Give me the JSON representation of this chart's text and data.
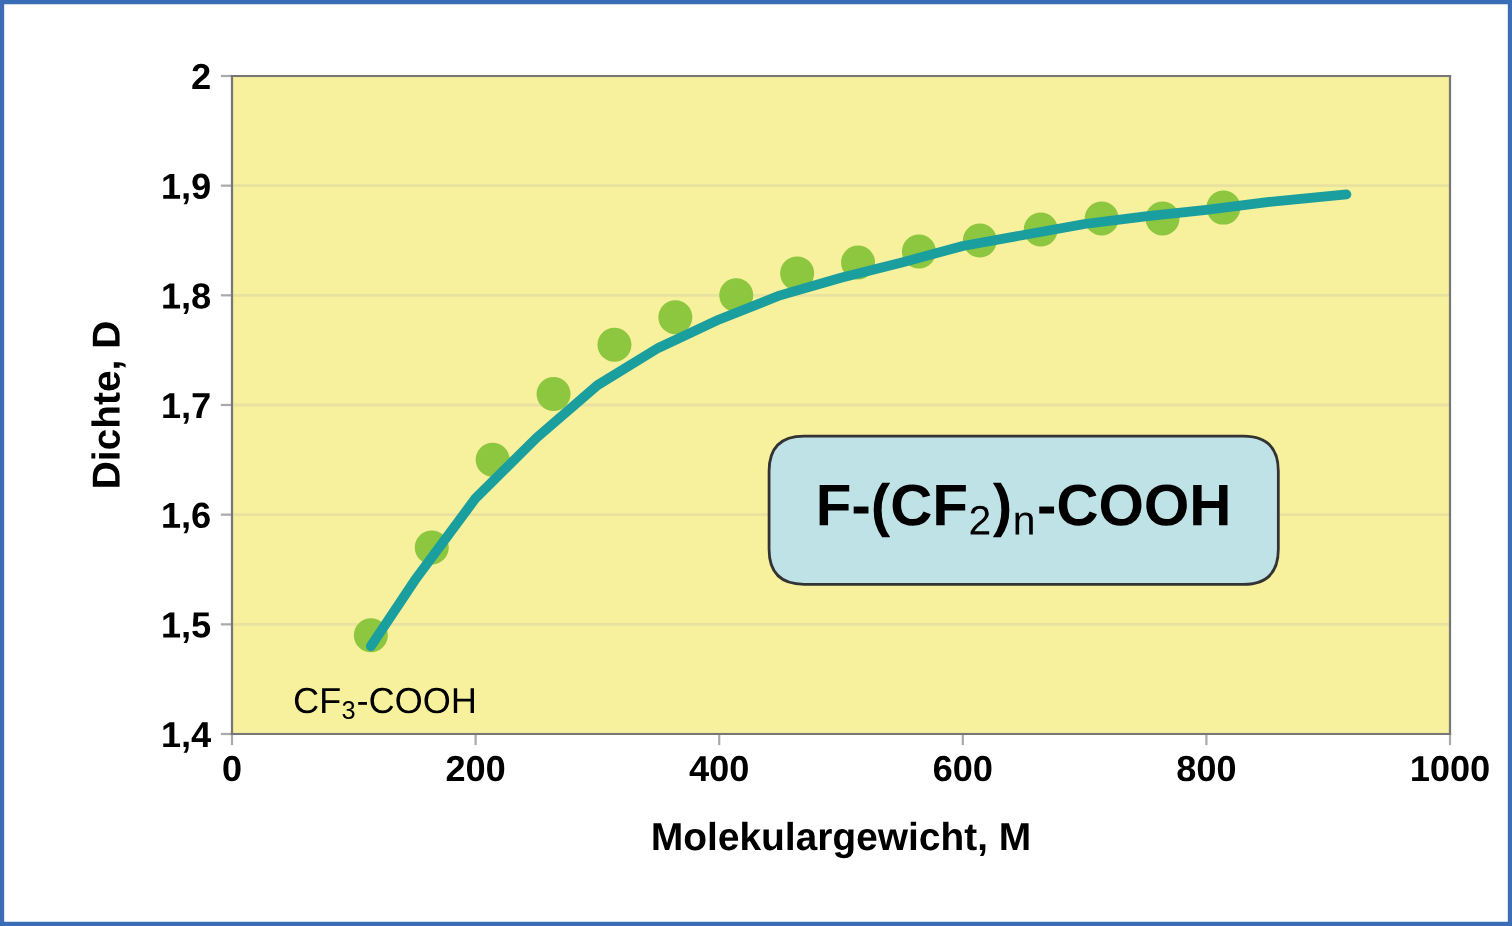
{
  "chart_data": {
    "type": "scatter",
    "xlabel": "Molekulargewicht, M",
    "ylabel": "Dichte, D",
    "series": [
      {
        "color": "#8dc63f",
        "marker": "circle",
        "x": [
          114,
          164,
          214,
          264,
          314,
          364,
          414,
          464,
          514,
          564,
          614,
          664,
          714,
          764,
          814
        ],
        "values": [
          1.49,
          1.57,
          1.65,
          1.71,
          1.755,
          1.78,
          1.8,
          1.82,
          1.83,
          1.84,
          1.85,
          1.86,
          1.87,
          1.87,
          1.88
        ]
      },
      {
        "type": "line",
        "color": "#1a9e9e",
        "marker": "none",
        "line_style": "solid",
        "x": [
          114,
          150,
          200,
          250,
          300,
          350,
          400,
          450,
          500,
          550,
          600,
          650,
          700,
          750,
          800,
          850,
          915
        ],
        "values": [
          1.48,
          1.54,
          1.615,
          1.67,
          1.718,
          1.752,
          1.778,
          1.8,
          1.816,
          1.83,
          1.845,
          1.855,
          1.865,
          1.872,
          1.878,
          1.885,
          1.892
        ]
      }
    ],
    "annotations": [
      {
        "text": "CF$_{3}$-COOH",
        "x": 114,
        "y": 1.49
      },
      "F-(CF$_{2}$)$_{n}$-COOH"
    ],
    "xlim": [
      0,
      1000
    ],
    "xticks": [
      0,
      200,
      400,
      600,
      800,
      1000
    ],
    "ylim": [
      1.4,
      2
    ],
    "yticks": [
      {
        "value": 1.4,
        "label": "1,4"
      },
      {
        "value": 1.5,
        "label": "1,5"
      },
      {
        "value": 1.6,
        "label": "1,6"
      },
      {
        "value": 1.7,
        "label": "1,7"
      },
      {
        "value": 1.8,
        "label": "1,8"
      },
      {
        "value": 1.9,
        "label": "1,9"
      },
      {
        "value": 2,
        "label": "2"
      }
    ],
    "grid": "y",
    "legend": false
  }
}
